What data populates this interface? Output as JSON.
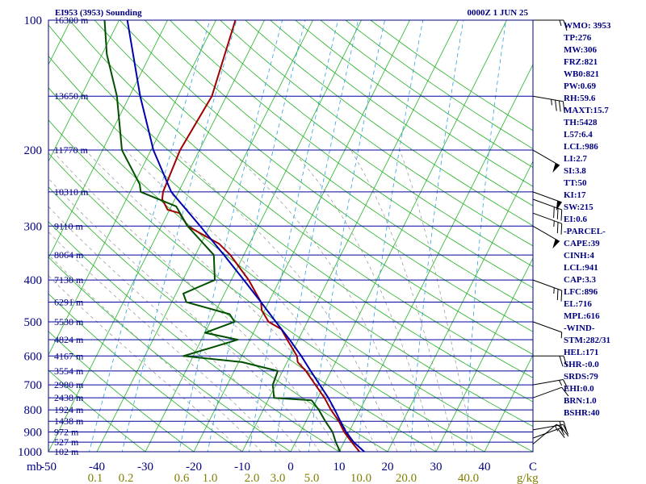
{
  "header": {
    "station": "EI953 (3953) Sounding",
    "time": "0000Z  1 JUN 25"
  },
  "indices": [
    "WMO: 3953",
    "TP:276",
    "MW:306",
    "FRZ:821",
    "WB0:821",
    "PW:0.69",
    "RH:59.6",
    "MAXT:15.7",
    "TH:5428",
    "L57:6.4",
    "LCL:986",
    "LI:2.7",
    "SI:3.8",
    "TT:50",
    "KI:17",
    "SW:215",
    "EI:0.6",
    "-PARCEL-",
    "CAPE:39",
    "CINH:4",
    "LCL:941",
    "CAP:3.3",
    "LFC:896",
    "EL:716",
    "MPL:616",
    "-WIND-",
    "STM:282/31",
    "HEL:171",
    "SHR-:0.0",
    "SRDS:79",
    "EHI:0.0",
    "BRN:1.0",
    "BSHR:40"
  ],
  "axis": {
    "pressure_unit": "mb",
    "mixing_ratio_unit": "g/kg",
    "temperature_ticks": [
      "-50",
      "-40",
      "-30",
      "-20",
      "-10",
      "0",
      "10",
      "20",
      "30",
      "40",
      "C"
    ],
    "mixing_ratio_labels": [
      "0.1",
      "0.2",
      "0.6",
      "1.0",
      "2.0",
      "3.0",
      "5.0",
      "10.0",
      "20.0",
      "40.0"
    ]
  },
  "chart_data": {
    "type": "line",
    "title": "EI953 (3953) Sounding",
    "subtitle": "0000Z  1 JUN 25",
    "xlabel": "C",
    "ylabel": "mb",
    "skew_t": true,
    "y_scale": "log",
    "ylim": [
      1000,
      100
    ],
    "xlim": [
      -50,
      50
    ],
    "pressure_ticks": [
      1000,
      900,
      800,
      700,
      600,
      500,
      400,
      300,
      200,
      100
    ],
    "height_levels": [
      {
        "p": 1000,
        "label": "102 m"
      },
      {
        "p": 950,
        "label": "527 m"
      },
      {
        "p": 900,
        "label": "972 m"
      },
      {
        "p": 850,
        "label": "1438 m"
      },
      {
        "p": 800,
        "label": "1924 m"
      },
      {
        "p": 750,
        "label": "2438 m"
      },
      {
        "p": 700,
        "label": "2980 m"
      },
      {
        "p": 650,
        "label": "3554 m"
      },
      {
        "p": 600,
        "label": "4167 m"
      },
      {
        "p": 550,
        "label": "4824 m"
      },
      {
        "p": 500,
        "label": "5530 m"
      },
      {
        "p": 450,
        "label": "6291 m"
      },
      {
        "p": 400,
        "label": "7130 m"
      },
      {
        "p": 350,
        "label": "8064 m"
      },
      {
        "p": 300,
        "label": "9110 m"
      },
      {
        "p": 250,
        "label": "10310 m"
      },
      {
        "p": 200,
        "label": "11770 m"
      },
      {
        "p": 150,
        "label": "13650 m"
      },
      {
        "p": 100,
        "label": "16300 m"
      }
    ],
    "series": [
      {
        "role": "temperature",
        "color": "#a00000",
        "points": [
          [
            1000,
            14.2
          ],
          [
            950,
            11.6
          ],
          [
            900,
            9.0
          ],
          [
            850,
            6.8
          ],
          [
            800,
            4.0
          ],
          [
            750,
            1.4
          ],
          [
            700,
            -1.8
          ],
          [
            650,
            -5.2
          ],
          [
            620,
            -7.8
          ],
          [
            600,
            -8.6
          ],
          [
            550,
            -12.3
          ],
          [
            520,
            -14.6
          ],
          [
            500,
            -18.0
          ],
          [
            470,
            -20.6
          ],
          [
            450,
            -21.6
          ],
          [
            400,
            -26.4
          ],
          [
            350,
            -32.8
          ],
          [
            330,
            -36.2
          ],
          [
            300,
            -44.6
          ],
          [
            280,
            -47.6
          ],
          [
            275,
            -50.4
          ],
          [
            260,
            -52.6
          ],
          [
            250,
            -53.2
          ],
          [
            200,
            -54.0
          ],
          [
            150,
            -53.0
          ],
          [
            100,
            -56.0
          ]
        ]
      },
      {
        "role": "dewpoint",
        "color": "#005000",
        "points": [
          [
            1000,
            10.2
          ],
          [
            950,
            8.3
          ],
          [
            900,
            6.6
          ],
          [
            850,
            4.0
          ],
          [
            800,
            1.5
          ],
          [
            760,
            -1.0
          ],
          [
            750,
            -9.0
          ],
          [
            700,
            -10.6
          ],
          [
            650,
            -11.0
          ],
          [
            620,
            -19.3
          ],
          [
            600,
            -32.0
          ],
          [
            550,
            -22.5
          ],
          [
            530,
            -30.0
          ],
          [
            500,
            -25.0
          ],
          [
            480,
            -26.8
          ],
          [
            450,
            -37.0
          ],
          [
            430,
            -38.5
          ],
          [
            400,
            -33.4
          ],
          [
            350,
            -36.2
          ],
          [
            300,
            -44.6
          ],
          [
            270,
            -49.0
          ],
          [
            250,
            -57.8
          ],
          [
            240,
            -58.8
          ],
          [
            200,
            -66.0
          ],
          [
            150,
            -72.6
          ],
          [
            120,
            -79.0
          ],
          [
            100,
            -83.0
          ]
        ]
      },
      {
        "role": "parcel",
        "color": "#0000b0",
        "points": [
          [
            1000,
            15.2
          ],
          [
            950,
            12.0
          ],
          [
            900,
            9.4
          ],
          [
            850,
            7.1
          ],
          [
            800,
            4.8
          ],
          [
            750,
            2.2
          ],
          [
            700,
            -0.9
          ],
          [
            650,
            -4.2
          ],
          [
            600,
            -7.7
          ],
          [
            550,
            -11.8
          ],
          [
            500,
            -16.5
          ],
          [
            450,
            -21.6
          ],
          [
            400,
            -27.4
          ],
          [
            350,
            -34.1
          ],
          [
            300,
            -42.0
          ],
          [
            250,
            -51.5
          ],
          [
            200,
            -59.5
          ],
          [
            150,
            -67.8
          ],
          [
            100,
            -78.3
          ]
        ]
      }
    ],
    "wind_barbs": [
      {
        "p": 960,
        "dir": 230,
        "speed": 5
      },
      {
        "p": 930,
        "dir": 250,
        "speed": 20
      },
      {
        "p": 890,
        "dir": 260,
        "speed": 25
      },
      {
        "p": 850,
        "dir": 270,
        "speed": 20
      },
      {
        "p": 750,
        "dir": 250,
        "speed": 10
      },
      {
        "p": 700,
        "dir": 260,
        "speed": 15
      },
      {
        "p": 600,
        "dir": 270,
        "speed": 20
      },
      {
        "p": 500,
        "dir": 290,
        "speed": 5
      },
      {
        "p": 400,
        "dir": 290,
        "speed": 25
      },
      {
        "p": 300,
        "dir": 300,
        "speed": 50
      },
      {
        "p": 280,
        "dir": 290,
        "speed": 25
      },
      {
        "p": 260,
        "dir": 290,
        "speed": 30
      },
      {
        "p": 250,
        "dir": 290,
        "speed": 50
      },
      {
        "p": 200,
        "dir": 300,
        "speed": 50
      },
      {
        "p": 150,
        "dir": 280,
        "speed": 35
      },
      {
        "p": 100,
        "dir": 270,
        "speed": 15
      }
    ]
  },
  "colors": {
    "background": "#ffffff",
    "isobar": "#0000a0",
    "isotherm": "#20b020",
    "dry_adiabat": "#20b020",
    "moist_adiabat": "#909090",
    "mixing_ratio": "#30a0e0",
    "frame": "#000080",
    "axis_text": "#000080",
    "mixing_text": "#808000"
  }
}
